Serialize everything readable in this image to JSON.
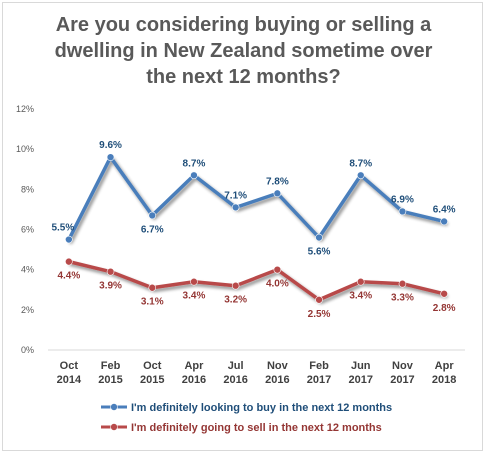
{
  "chart_data": {
    "type": "line",
    "title_lines": [
      "Are you considering buying or selling a",
      "dwelling in New Zealand sometime over",
      "the next 12 months?"
    ],
    "categories": [
      [
        "Oct",
        "2014"
      ],
      [
        "Feb",
        "2015"
      ],
      [
        "Oct",
        "2015"
      ],
      [
        "Apr",
        "2016"
      ],
      [
        "Jul",
        "2016"
      ],
      [
        "Nov",
        "2016"
      ],
      [
        "Feb",
        "2017"
      ],
      [
        "Jun",
        "2017"
      ],
      [
        "Nov",
        "2017"
      ],
      [
        "Apr",
        "2018"
      ]
    ],
    "ylim": [
      0,
      12
    ],
    "yticks": [
      0,
      2,
      4,
      6,
      8,
      10,
      12
    ],
    "ytick_labels": [
      "0%",
      "2%",
      "4%",
      "6%",
      "8%",
      "10%",
      "12%"
    ],
    "grid": false,
    "legend_position": "bottom",
    "series": [
      {
        "name": "I'm definitely looking to buy in the next 12 months",
        "color": "#4a7ebb",
        "label_color": "#1f4e79",
        "values": [
          5.5,
          9.6,
          6.7,
          8.7,
          7.1,
          7.8,
          5.6,
          8.7,
          6.9,
          6.4
        ],
        "labels": [
          "5.5%",
          "9.6%",
          "6.7%",
          "8.7%",
          "7.1%",
          "7.8%",
          "5.6%",
          "8.7%",
          "6.9%",
          "6.4%"
        ],
        "label_pos": [
          "above",
          "above",
          "below",
          "above",
          "above",
          "above",
          "below",
          "above",
          "above",
          "above"
        ]
      },
      {
        "name": "I'm definitely going to sell in the next 12 months",
        "color": "#b84a4a",
        "label_color": "#943634",
        "values": [
          4.4,
          3.9,
          3.1,
          3.4,
          3.2,
          4.0,
          2.5,
          3.4,
          3.3,
          2.8
        ],
        "labels": [
          "4.4%",
          "3.9%",
          "3.1%",
          "3.4%",
          "3.2%",
          "4.0%",
          "2.5%",
          "3.4%",
          "3.3%",
          "2.8%"
        ],
        "label_pos": [
          "below",
          "below",
          "below",
          "below",
          "below",
          "below",
          "below",
          "below",
          "below",
          "below"
        ]
      }
    ]
  }
}
